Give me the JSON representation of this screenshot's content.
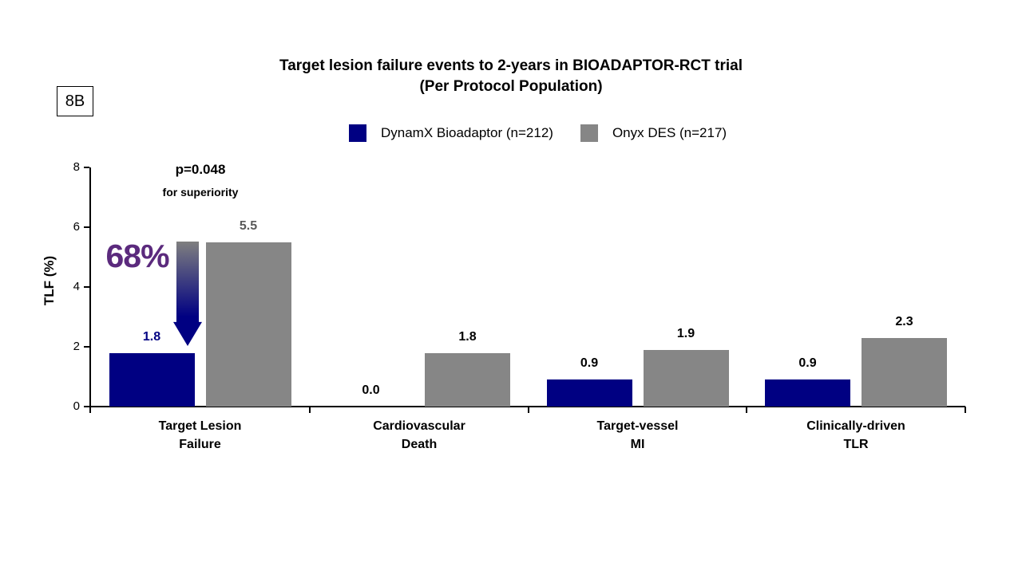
{
  "figure_label": "8B",
  "title": {
    "line1": "Target lesion failure events to 2-years in BIOADAPTOR-RCT trial",
    "line2": "(Per Protocol Population)"
  },
  "legend": {
    "items": [
      {
        "label": "DynamX Bioadaptor (n=212)",
        "color": "#000082"
      },
      {
        "label": "Onyx DES (n=217)",
        "color": "#868686"
      }
    ]
  },
  "annotations": {
    "p_value": "p=0.048",
    "p_value_sub": "for superiority",
    "reduction_label": "68%",
    "reduction_color": "#5B2A7D",
    "arrow_gradient": [
      "#7F7F7F",
      "#000082"
    ]
  },
  "chart_data": {
    "type": "bar",
    "title": "Target lesion failure events to 2-years in BIOADAPTOR-RCT trial (Per Protocol Population)",
    "xlabel": "",
    "ylabel": "TLF (%)",
    "ylim": [
      0,
      8
    ],
    "yticks": [
      0,
      2,
      4,
      6,
      8
    ],
    "grid": false,
    "legend_position": "top",
    "categories": [
      [
        "Target Lesion",
        "Failure"
      ],
      [
        "Cardiovascular",
        "Death"
      ],
      [
        "Target-vessel",
        "MI"
      ],
      [
        "Clinically-driven",
        "TLR"
      ]
    ],
    "series": [
      {
        "name": "DynamX Bioadaptor (n=212)",
        "color": "#000082",
        "values": [
          1.8,
          0.0,
          0.9,
          0.9
        ],
        "value_labels": [
          "1.8",
          "0.0",
          "0.9",
          "0.9"
        ],
        "label_colors": [
          "#000082",
          "#000000",
          "#000000",
          "#000000"
        ]
      },
      {
        "name": "Onyx DES (n=217)",
        "color": "#868686",
        "values": [
          5.5,
          1.8,
          1.9,
          2.3
        ],
        "value_labels": [
          "5.5",
          "1.8",
          "1.9",
          "2.3"
        ],
        "label_colors": [
          "#595959",
          "#000000",
          "#000000",
          "#000000"
        ]
      }
    ]
  }
}
